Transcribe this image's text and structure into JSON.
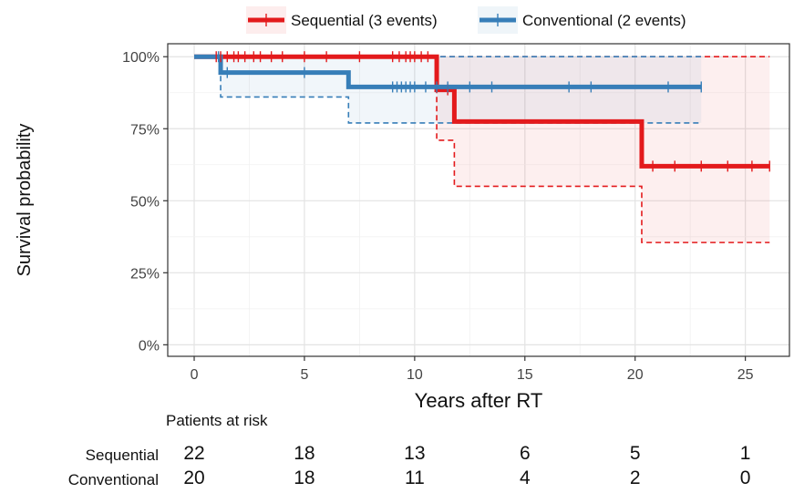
{
  "chart_data": {
    "type": "line",
    "subtype": "kaplan-meier",
    "title": "",
    "xlabel": "Years after RT",
    "ylabel": "Survival probability",
    "xlim": [
      -1.2,
      27.0
    ],
    "ylim": [
      -0.04,
      1.045
    ],
    "x_ticks": [
      0,
      5,
      10,
      15,
      20,
      25
    ],
    "x_tick_labels": [
      "0",
      "5",
      "10",
      "15",
      "20",
      "25"
    ],
    "y_ticks": [
      0,
      0.25,
      0.5,
      0.75,
      1.0
    ],
    "y_tick_labels": [
      "0%",
      "25%",
      "50%",
      "75%",
      "100%"
    ],
    "grid": true,
    "legend_position": "top",
    "series": [
      {
        "name": "Sequential (3 events)",
        "color": "#e31a1c",
        "steps": [
          [
            0,
            1.0
          ],
          [
            11.0,
            0.885
          ],
          [
            11.8,
            0.775
          ],
          [
            20.3,
            0.62
          ],
          [
            26.1,
            0.62
          ]
        ],
        "ci_lower": [
          [
            0,
            1.0
          ],
          [
            11.0,
            0.71
          ],
          [
            11.8,
            0.55
          ],
          [
            20.3,
            0.355
          ],
          [
            26.1,
            0.355
          ]
        ],
        "ci_upper": [
          [
            0,
            1.0
          ],
          [
            11.0,
            1.0
          ],
          [
            26.1,
            1.0
          ]
        ],
        "censor_times": [
          1.0,
          1.2,
          1.5,
          1.8,
          2.0,
          2.3,
          2.7,
          3.0,
          3.5,
          4.0,
          5.0,
          6.0,
          7.5,
          9.0,
          9.3,
          9.6,
          9.8,
          10.0,
          10.3,
          10.6,
          11.5,
          20.8,
          21.8,
          23.0,
          24.2,
          25.3,
          26.1
        ]
      },
      {
        "name": "Conventional (2 events)",
        "color": "#377eb8",
        "steps": [
          [
            0,
            1.0
          ],
          [
            1.2,
            0.945
          ],
          [
            7.0,
            0.895
          ],
          [
            23.0,
            0.895
          ]
        ],
        "ci_lower": [
          [
            0,
            1.0
          ],
          [
            1.2,
            0.86
          ],
          [
            7.0,
            0.77
          ],
          [
            23.0,
            0.77
          ]
        ],
        "ci_upper": [
          [
            0,
            1.0
          ],
          [
            23.0,
            1.0
          ]
        ],
        "censor_times": [
          1.1,
          1.5,
          5.0,
          9.0,
          9.2,
          9.4,
          9.6,
          9.8,
          10.0,
          10.5,
          11.0,
          11.5,
          12.5,
          13.5,
          17.0,
          18.0,
          21.5,
          23.0
        ]
      }
    ],
    "risk_table": {
      "title": "Patients at risk",
      "times": [
        0,
        5,
        10,
        15,
        20,
        25
      ],
      "rows": [
        {
          "label": "Sequential",
          "values": [
            "22",
            "18",
            "13",
            "6",
            "5",
            "1"
          ]
        },
        {
          "label": "Conventional",
          "values": [
            "20",
            "18",
            "11",
            "4",
            "2",
            "0"
          ]
        }
      ]
    }
  }
}
